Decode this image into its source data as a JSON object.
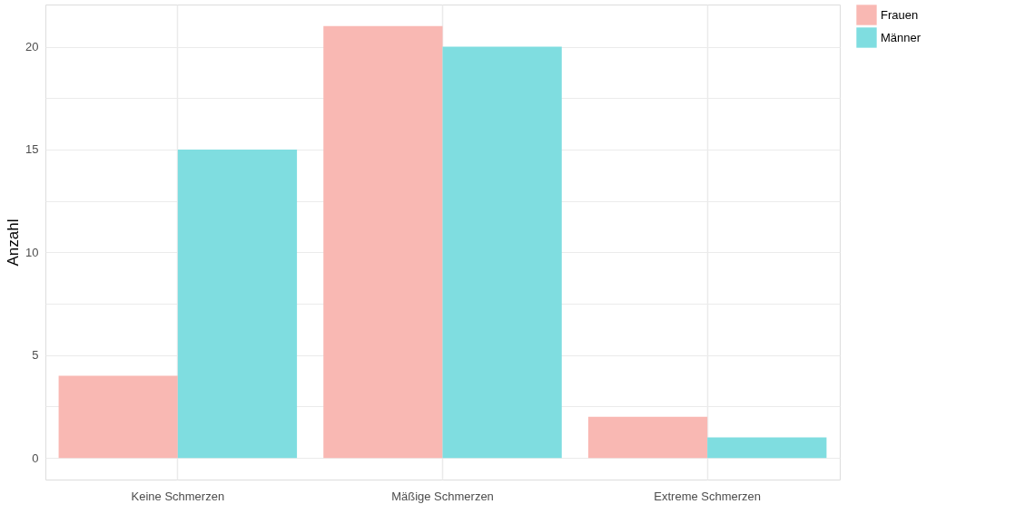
{
  "chart_data": {
    "type": "bar",
    "ylabel": "Anzahl",
    "categories": [
      "Keine Schmerzen",
      "Mäßige Schmerzen",
      "Extreme Schmerzen"
    ],
    "series": [
      {
        "name": "Frauen",
        "color": "#f9b8b3",
        "values": [
          4,
          21,
          2
        ]
      },
      {
        "name": "Männer",
        "color": "#7fdde0",
        "values": [
          15,
          20,
          1
        ]
      }
    ],
    "ylim": [
      -1.05,
      22.05
    ],
    "yticks": [
      0,
      {
        "value": 2.5,
        "label": null
      },
      5,
      {
        "value": 7.5,
        "label": null
      },
      10,
      {
        "value": 12.5,
        "label": null
      },
      15,
      {
        "value": 17.5,
        "label": null
      },
      20
    ],
    "grid": true,
    "legend": "right"
  }
}
